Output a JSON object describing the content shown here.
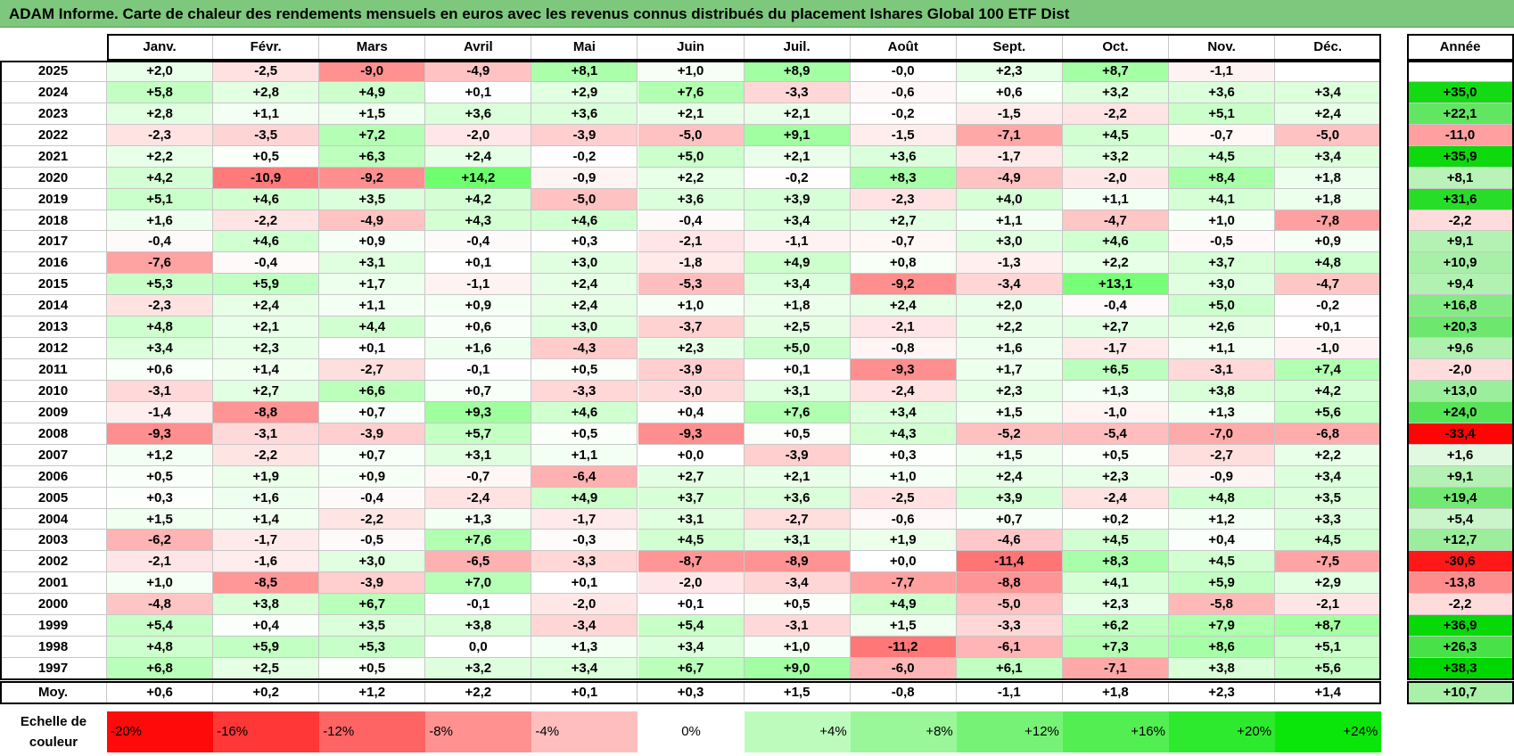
{
  "title": "ADAM Informe. Carte de chaleur des rendements mensuels en euros avec les revenus connus distribués du placement Ishares Global 100 ETF Dist",
  "chart_data": {
    "type": "heatmap",
    "title": "ADAM Informe. Carte de chaleur des rendements mensuels en euros avec les revenus connus distribués du placement Ishares Global 100 ETF Dist",
    "columns": [
      "Janv.",
      "Févr.",
      "Mars",
      "Avril",
      "Mai",
      "Juin",
      "Juil.",
      "Août",
      "Sept.",
      "Oct.",
      "Nov.",
      "Déc."
    ],
    "annual_header": "Année",
    "rows": [
      {
        "year": "2025",
        "values": [
          "+2,0",
          "-2,5",
          "-9,0",
          "-4,9",
          "+8,1",
          "+1,0",
          "+8,9",
          "-0,0",
          "+2,3",
          "+8,7",
          "-1,1",
          ""
        ],
        "annual": ""
      },
      {
        "year": "2024",
        "values": [
          "+5,8",
          "+2,8",
          "+4,9",
          "+0,1",
          "+2,9",
          "+7,6",
          "-3,3",
          "-0,6",
          "+0,6",
          "+3,2",
          "+3,6",
          "+3,4"
        ],
        "annual": "+35,0"
      },
      {
        "year": "2023",
        "values": [
          "+2,8",
          "+1,1",
          "+1,5",
          "+3,6",
          "+3,6",
          "+2,1",
          "+2,1",
          "-0,2",
          "-1,5",
          "-2,2",
          "+5,1",
          "+2,4"
        ],
        "annual": "+22,1"
      },
      {
        "year": "2022",
        "values": [
          "-2,3",
          "-3,5",
          "+7,2",
          "-2,0",
          "-3,9",
          "-5,0",
          "+9,1",
          "-1,5",
          "-7,1",
          "+4,5",
          "-0,7",
          "-5,0"
        ],
        "annual": "-11,0"
      },
      {
        "year": "2021",
        "values": [
          "+2,2",
          "+0,5",
          "+6,3",
          "+2,4",
          "-0,2",
          "+5,0",
          "+2,1",
          "+3,6",
          "-1,7",
          "+3,2",
          "+4,5",
          "+3,4"
        ],
        "annual": "+35,9"
      },
      {
        "year": "2020",
        "values": [
          "+4,2",
          "-10,9",
          "-9,2",
          "+14,2",
          "-0,9",
          "+2,2",
          "-0,2",
          "+8,3",
          "-4,9",
          "-2,0",
          "+8,4",
          "+1,8"
        ],
        "annual": "+8,1"
      },
      {
        "year": "2019",
        "values": [
          "+5,1",
          "+4,6",
          "+3,5",
          "+4,2",
          "-5,0",
          "+3,6",
          "+3,9",
          "-2,3",
          "+4,0",
          "+1,1",
          "+4,1",
          "+1,8"
        ],
        "annual": "+31,6"
      },
      {
        "year": "2018",
        "values": [
          "+1,6",
          "-2,2",
          "-4,9",
          "+4,3",
          "+4,6",
          "-0,4",
          "+3,4",
          "+2,7",
          "+1,1",
          "-4,7",
          "+1,0",
          "-7,8"
        ],
        "annual": "-2,2"
      },
      {
        "year": "2017",
        "values": [
          "-0,4",
          "+4,6",
          "+0,9",
          "-0,4",
          "+0,3",
          "-2,1",
          "-1,1",
          "-0,7",
          "+3,0",
          "+4,6",
          "-0,5",
          "+0,9"
        ],
        "annual": "+9,1"
      },
      {
        "year": "2016",
        "values": [
          "-7,6",
          "-0,4",
          "+3,1",
          "+0,1",
          "+3,0",
          "-1,8",
          "+4,9",
          "+0,8",
          "-1,3",
          "+2,2",
          "+3,7",
          "+4,8"
        ],
        "annual": "+10,9"
      },
      {
        "year": "2015",
        "values": [
          "+5,3",
          "+5,9",
          "+1,7",
          "-1,1",
          "+2,4",
          "-5,3",
          "+3,4",
          "-9,2",
          "-3,4",
          "+13,1",
          "+3,0",
          "-4,7"
        ],
        "annual": "+9,4"
      },
      {
        "year": "2014",
        "values": [
          "-2,3",
          "+2,4",
          "+1,1",
          "+0,9",
          "+2,4",
          "+1,0",
          "+1,8",
          "+2,4",
          "+2,0",
          "-0,4",
          "+5,0",
          "-0,2"
        ],
        "annual": "+16,8"
      },
      {
        "year": "2013",
        "values": [
          "+4,8",
          "+2,1",
          "+4,4",
          "+0,6",
          "+3,0",
          "-3,7",
          "+2,5",
          "-2,1",
          "+2,2",
          "+2,7",
          "+2,6",
          "+0,1"
        ],
        "annual": "+20,3"
      },
      {
        "year": "2012",
        "values": [
          "+3,4",
          "+2,3",
          "+0,1",
          "+1,6",
          "-4,3",
          "+2,3",
          "+5,0",
          "-0,8",
          "+1,6",
          "-1,7",
          "+1,1",
          "-1,0"
        ],
        "annual": "+9,6"
      },
      {
        "year": "2011",
        "values": [
          "+0,6",
          "+1,4",
          "-2,7",
          "-0,1",
          "+0,5",
          "-3,9",
          "+0,1",
          "-9,3",
          "+1,7",
          "+6,5",
          "-3,1",
          "+7,4"
        ],
        "annual": "-2,0"
      },
      {
        "year": "2010",
        "values": [
          "-3,1",
          "+2,7",
          "+6,6",
          "+0,7",
          "-3,3",
          "-3,0",
          "+3,1",
          "-2,4",
          "+2,3",
          "+1,3",
          "+3,8",
          "+4,2"
        ],
        "annual": "+13,0"
      },
      {
        "year": "2009",
        "values": [
          "-1,4",
          "-8,8",
          "+0,7",
          "+9,3",
          "+4,6",
          "+0,4",
          "+7,6",
          "+3,4",
          "+1,5",
          "-1,0",
          "+1,3",
          "+5,6"
        ],
        "annual": "+24,0"
      },
      {
        "year": "2008",
        "values": [
          "-9,3",
          "-3,1",
          "-3,9",
          "+5,7",
          "+0,5",
          "-9,3",
          "+0,5",
          "+4,3",
          "-5,2",
          "-5,4",
          "-7,0",
          "-6,8"
        ],
        "annual": "-33,4"
      },
      {
        "year": "2007",
        "values": [
          "+1,2",
          "-2,2",
          "+0,7",
          "+3,1",
          "+1,1",
          "+0,0",
          "-3,9",
          "+0,3",
          "+1,5",
          "+0,5",
          "-2,7",
          "+2,2"
        ],
        "annual": "+1,6"
      },
      {
        "year": "2006",
        "values": [
          "+0,5",
          "+1,9",
          "+0,9",
          "-0,7",
          "-6,4",
          "+2,7",
          "+2,1",
          "+1,0",
          "+2,4",
          "+2,3",
          "-0,9",
          "+3,4"
        ],
        "annual": "+9,1"
      },
      {
        "year": "2005",
        "values": [
          "+0,3",
          "+1,6",
          "-0,4",
          "-2,4",
          "+4,9",
          "+3,7",
          "+3,6",
          "-2,5",
          "+3,9",
          "-2,4",
          "+4,8",
          "+3,5"
        ],
        "annual": "+19,4"
      },
      {
        "year": "2004",
        "values": [
          "+1,5",
          "+1,4",
          "-2,2",
          "+1,3",
          "-1,7",
          "+3,1",
          "-2,7",
          "-0,6",
          "+0,7",
          "+0,2",
          "+1,2",
          "+3,3"
        ],
        "annual": "+5,4"
      },
      {
        "year": "2003",
        "values": [
          "-6,2",
          "-1,7",
          "-0,5",
          "+7,6",
          "-0,3",
          "+4,5",
          "+3,1",
          "+1,9",
          "-4,6",
          "+4,5",
          "+0,4",
          "+4,5"
        ],
        "annual": "+12,7"
      },
      {
        "year": "2002",
        "values": [
          "-2,1",
          "-1,6",
          "+3,0",
          "-6,5",
          "-3,3",
          "-8,7",
          "-8,9",
          "+0,0",
          "-11,4",
          "+8,3",
          "+4,5",
          "-7,5"
        ],
        "annual": "-30,6"
      },
      {
        "year": "2001",
        "values": [
          "+1,0",
          "-8,5",
          "-3,9",
          "+7,0",
          "+0,1",
          "-2,0",
          "-3,4",
          "-7,7",
          "-8,8",
          "+4,1",
          "+5,9",
          "+2,9"
        ],
        "annual": "-13,8"
      },
      {
        "year": "2000",
        "values": [
          "-4,8",
          "+3,8",
          "+6,7",
          "-0,1",
          "-2,0",
          "+0,1",
          "+0,5",
          "+4,9",
          "-5,0",
          "+2,3",
          "-5,8",
          "-2,1"
        ],
        "annual": "-2,2"
      },
      {
        "year": "1999",
        "values": [
          "+5,4",
          "+0,4",
          "+3,5",
          "+3,8",
          "-3,4",
          "+5,4",
          "-3,1",
          "+1,5",
          "-3,3",
          "+6,2",
          "+7,9",
          "+8,7"
        ],
        "annual": "+36,9"
      },
      {
        "year": "1998",
        "values": [
          "+4,8",
          "+5,9",
          "+5,3",
          "0,0",
          "+1,3",
          "+3,4",
          "+1,0",
          "-11,2",
          "-6,1",
          "+7,3",
          "+8,6",
          "+5,1"
        ],
        "annual": "+26,3"
      },
      {
        "year": "1997",
        "values": [
          "+6,8",
          "+2,5",
          "+0,5",
          "+3,2",
          "+3,4",
          "+6,7",
          "+9,0",
          "-6,0",
          "+6,1",
          "-7,1",
          "+3,8",
          "+5,6"
        ],
        "annual": "+38,3"
      }
    ],
    "average": {
      "label": "Moy.",
      "values": [
        "+0,6",
        "+0,2",
        "+1,2",
        "+2,2",
        "+0,1",
        "+0,3",
        "+1,5",
        "-0,8",
        "-1,1",
        "+1,8",
        "+2,3",
        "+1,4"
      ],
      "annual": "+10,7"
    },
    "legend": {
      "label_line1": "Echelle de",
      "label_line2": "couleur",
      "steps": [
        "-20%",
        "-16%",
        "-12%",
        "-8%",
        "-4%",
        "0%",
        "+4%",
        "+8%",
        "+12%",
        "+16%",
        "+20%",
        "+24%"
      ],
      "step_values": [
        -20,
        -16,
        -12,
        -8,
        -4,
        0,
        4,
        8,
        12,
        16,
        20,
        24
      ]
    },
    "colors": {
      "negative": "#ff0000",
      "neutral": "#ffffff",
      "positive": "#00dd00",
      "title_bg": "#7ec87e"
    }
  }
}
